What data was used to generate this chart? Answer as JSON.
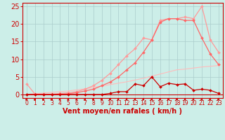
{
  "title": "",
  "xlabel": "Vent moyen/en rafales ( km/h )",
  "x": [
    0,
    1,
    2,
    3,
    4,
    5,
    6,
    7,
    8,
    9,
    10,
    11,
    12,
    13,
    14,
    15,
    16,
    17,
    18,
    19,
    20,
    21,
    22,
    23
  ],
  "series": [
    {
      "name": "diagonal_lightest",
      "color": "#ffbbbb",
      "linewidth": 0.8,
      "marker": null,
      "markersize": 0,
      "y": [
        0,
        0.2,
        0.4,
        0.6,
        0.8,
        1.0,
        1.3,
        1.6,
        2.0,
        2.4,
        2.8,
        3.2,
        3.6,
        4.1,
        4.6,
        5.2,
        5.8,
        6.4,
        7.0,
        7.2,
        7.5,
        7.8,
        8.0,
        8.2
      ]
    },
    {
      "name": "line_light_peak",
      "color": "#ff9999",
      "linewidth": 0.9,
      "marker": "D",
      "markersize": 2,
      "y": [
        3.0,
        0.1,
        0.1,
        0.1,
        0.3,
        0.5,
        0.8,
        1.5,
        2.5,
        4.0,
        6.0,
        8.5,
        11.0,
        13.0,
        16.0,
        15.5,
        21.0,
        21.5,
        21.5,
        22.0,
        21.5,
        25.0,
        15.5,
        12.0
      ]
    },
    {
      "name": "line_medium",
      "color": "#ff6666",
      "linewidth": 0.9,
      "marker": "D",
      "markersize": 2,
      "y": [
        0,
        0,
        0,
        0,
        0.1,
        0.2,
        0.5,
        1.0,
        1.5,
        2.5,
        3.5,
        5.0,
        7.0,
        9.0,
        12.0,
        15.5,
        20.5,
        21.5,
        21.5,
        21.0,
        21.0,
        16.0,
        11.5,
        8.5
      ]
    },
    {
      "name": "line_dark_spiky",
      "color": "#cc0000",
      "linewidth": 0.9,
      "marker": "D",
      "markersize": 2,
      "y": [
        0,
        0,
        0,
        0,
        0,
        0,
        0,
        0,
        0,
        0,
        0.3,
        0.8,
        0.8,
        3.0,
        2.5,
        5.0,
        2.2,
        3.2,
        2.8,
        3.0,
        1.2,
        1.5,
        1.2,
        0.3
      ]
    }
  ],
  "ylim": [
    -1,
    26
  ],
  "xlim": [
    -0.5,
    23.5
  ],
  "yticks": [
    0,
    5,
    10,
    15,
    20,
    25
  ],
  "xticks": [
    0,
    1,
    2,
    3,
    4,
    5,
    6,
    7,
    8,
    9,
    10,
    11,
    12,
    13,
    14,
    15,
    16,
    17,
    18,
    19,
    20,
    21,
    22,
    23
  ],
  "bg_color": "#cceee8",
  "grid_color": "#aacccc",
  "axis_color": "#cc0000",
  "xlabel_color": "#cc0000",
  "tick_color": "#cc0000",
  "xlabel_fontsize": 7.0,
  "ytick_fontsize": 7,
  "xtick_fontsize": 5.5,
  "arrow_color": "#cc0000",
  "hline_color": "#cc0000"
}
